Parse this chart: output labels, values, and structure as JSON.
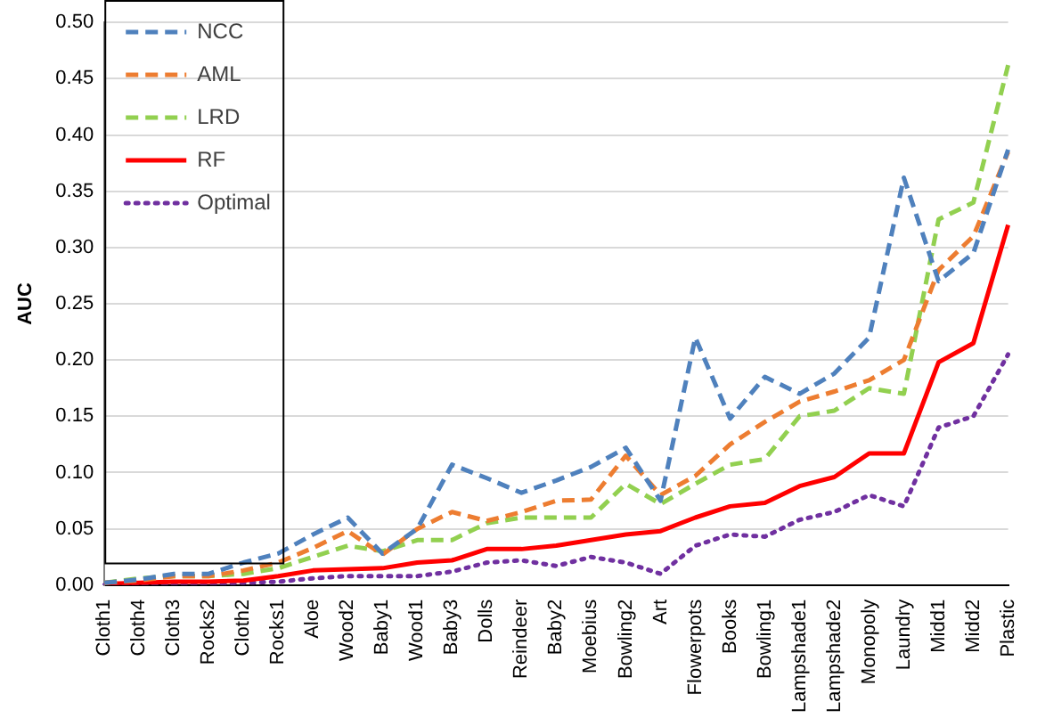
{
  "chart_data": {
    "type": "line",
    "ylabel": "AUC",
    "categories": [
      "Cloth1",
      "Cloth4",
      "Cloth3",
      "Rocks2",
      "Cloth2",
      "Rocks1",
      "Aloe",
      "Wood2",
      "Baby1",
      "Wood1",
      "Baby3",
      "Dolls",
      "Reindeer",
      "Baby2",
      "Moebius",
      "Bowling2",
      "Art",
      "Flowerpots",
      "Books",
      "Bowling1",
      "Lampshade1",
      "Lampshade2",
      "Monopoly",
      "Laundry",
      "Midd1",
      "Midd2",
      "Plastic"
    ],
    "series": [
      {
        "name": "NCC",
        "color": "#4f81bd",
        "line_style": "dashed",
        "values": [
          0.002,
          0.005,
          0.01,
          0.01,
          0.02,
          0.028,
          0.045,
          0.06,
          0.028,
          0.05,
          0.107,
          0.095,
          0.082,
          0.093,
          0.105,
          0.122,
          0.075,
          0.22,
          0.148,
          0.185,
          0.17,
          0.188,
          0.22,
          0.362,
          0.27,
          0.295,
          0.387
        ]
      },
      {
        "name": "AML",
        "color": "#ed7d31",
        "line_style": "dashed",
        "values": [
          0.002,
          0.004,
          0.008,
          0.008,
          0.013,
          0.02,
          0.033,
          0.048,
          0.027,
          0.05,
          0.065,
          0.057,
          0.065,
          0.075,
          0.076,
          0.115,
          0.08,
          0.097,
          0.125,
          0.145,
          0.163,
          0.172,
          0.182,
          0.2,
          0.28,
          0.31,
          0.385
        ]
      },
      {
        "name": "LRD",
        "color": "#92d050",
        "line_style": "dashed",
        "values": [
          0.002,
          0.006,
          0.008,
          0.008,
          0.01,
          0.015,
          0.025,
          0.035,
          0.03,
          0.04,
          0.04,
          0.055,
          0.06,
          0.06,
          0.06,
          0.09,
          0.072,
          0.09,
          0.107,
          0.112,
          0.15,
          0.155,
          0.175,
          0.17,
          0.325,
          0.34,
          0.462
        ]
      },
      {
        "name": "RF",
        "color": "#ff0000",
        "line_style": "solid",
        "values": [
          0.001,
          0.002,
          0.003,
          0.003,
          0.004,
          0.008,
          0.013,
          0.014,
          0.015,
          0.02,
          0.022,
          0.032,
          0.032,
          0.035,
          0.04,
          0.045,
          0.048,
          0.06,
          0.07,
          0.073,
          0.088,
          0.096,
          0.117,
          0.117,
          0.198,
          0.215,
          0.32
        ]
      },
      {
        "name": "Optimal",
        "color": "#7030a0",
        "line_style": "dotted",
        "values": [
          0.0,
          0.0,
          0.001,
          0.001,
          0.002,
          0.003,
          0.006,
          0.008,
          0.008,
          0.008,
          0.012,
          0.02,
          0.022,
          0.017,
          0.025,
          0.02,
          0.01,
          0.035,
          0.045,
          0.043,
          0.058,
          0.065,
          0.08,
          0.07,
          0.14,
          0.15,
          0.205
        ]
      }
    ],
    "ylim": [
      0,
      0.5
    ],
    "yticks": [
      {
        "value": 0,
        "label": "0.00"
      },
      {
        "value": 0.05,
        "label": "0.05"
      },
      {
        "value": 0.1,
        "label": "0.10"
      },
      {
        "value": 0.15,
        "label": "0.15"
      },
      {
        "value": 0.2,
        "label": "0.20"
      },
      {
        "value": 0.25,
        "label": "0.25"
      },
      {
        "value": 0.3,
        "label": "0.30"
      },
      {
        "value": 0.35,
        "label": "0.35"
      },
      {
        "value": 0.4,
        "label": "0.40"
      },
      {
        "value": 0.45,
        "label": "0.45"
      },
      {
        "value": 0.5,
        "label": "0.50"
      }
    ],
    "grid": "y",
    "legend": "top left",
    "marker": "none"
  }
}
